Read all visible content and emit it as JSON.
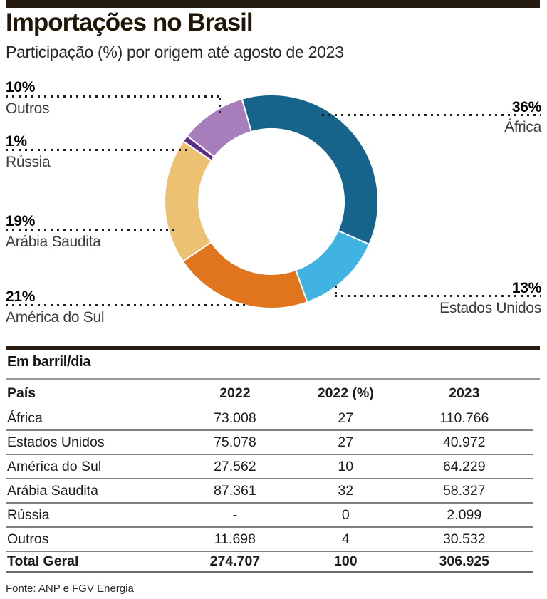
{
  "header": {
    "title": "Importações no Brasil",
    "subtitle": "Participação (%) por origem até agosto de 2023"
  },
  "colors": {
    "rule_dark": "#241a10",
    "leader_dots": "#1e1e1e"
  },
  "chart_data": {
    "type": "pie",
    "subtype": "donut",
    "title": "Importações no Brasil",
    "subtitle": "Participação (%) por origem até agosto de 2023",
    "unit": "%",
    "direction": "clockwise",
    "start_angle_deg": -16,
    "slices": [
      {
        "name": "África",
        "percent": 36,
        "pct_label": "36%",
        "color": "#16638c"
      },
      {
        "name": "Estados Unidos",
        "percent": 13,
        "pct_label": "13%",
        "color": "#41b3e2"
      },
      {
        "name": "América do Sul",
        "percent": 21,
        "pct_label": "21%",
        "color": "#e1751e"
      },
      {
        "name": "Arábia Saudita",
        "percent": 19,
        "pct_label": "19%",
        "color": "#ecc172"
      },
      {
        "name": "Rússia",
        "percent": 1,
        "pct_label": "1%",
        "color": "#5b2c86"
      },
      {
        "name": "Outros",
        "percent": 10,
        "pct_label": "10%",
        "color": "#a77dbb"
      }
    ]
  },
  "table": {
    "section_label": "Em barril/dia",
    "columns": [
      "País",
      "2022",
      "2022 (%)",
      "2023"
    ],
    "rows": [
      [
        "África",
        "73.008",
        "27",
        "110.766"
      ],
      [
        "Estados Unidos",
        "75.078",
        "27",
        "40.972"
      ],
      [
        "América do Sul",
        "27.562",
        "10",
        "64.229"
      ],
      [
        "Arábia Saudita",
        "87.361",
        "32",
        "58.327"
      ],
      [
        "Rússia",
        "-",
        "0",
        "2.099"
      ],
      [
        "Outros",
        "11.698",
        "4",
        "30.532"
      ]
    ],
    "total_row": [
      "Total Geral",
      "274.707",
      "100",
      "306.925"
    ]
  },
  "footer": {
    "source": "Fonte: ANP e FGV Energia"
  }
}
